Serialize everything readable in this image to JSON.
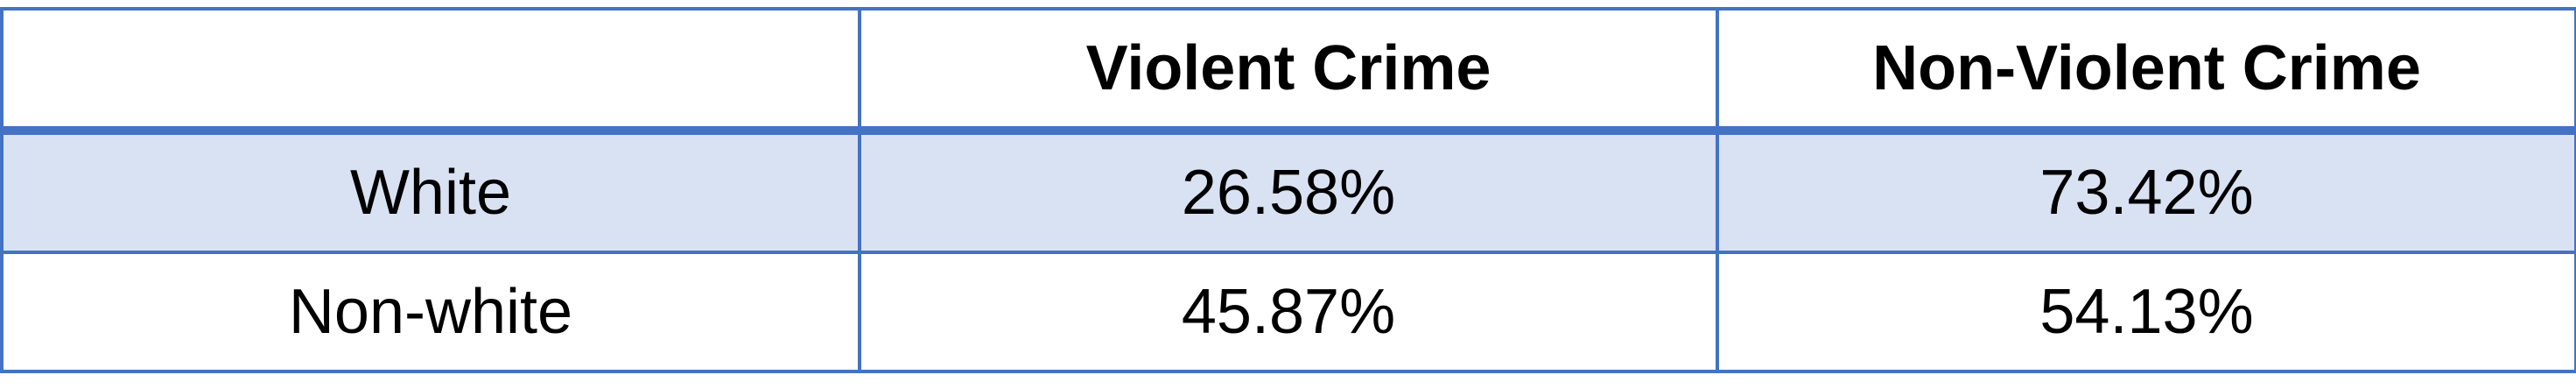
{
  "chart_data": {
    "type": "table",
    "columns": [
      "",
      "Violent Crime",
      "Non-Violent Crime"
    ],
    "rows": [
      {
        "label": "White",
        "values": [
          "26.58%",
          "73.42%"
        ]
      },
      {
        "label": "Non-white",
        "values": [
          "45.87%",
          "54.13%"
        ]
      }
    ],
    "colors": {
      "border": "#4472c4",
      "band": "#d9e2f3"
    }
  }
}
